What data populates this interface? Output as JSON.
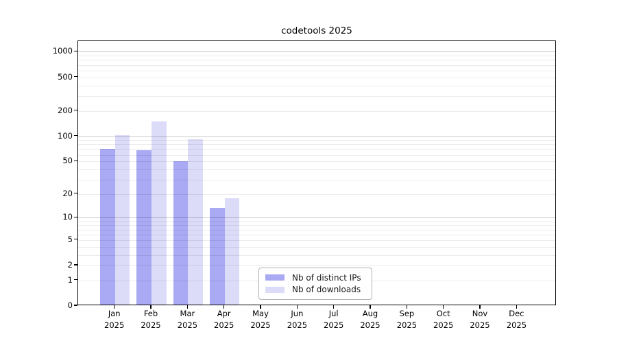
{
  "chart_data": {
    "type": "bar",
    "title": "codetools 2025",
    "categories": [
      "Jan 2025",
      "Feb 2025",
      "Mar 2025",
      "Apr 2025",
      "May 2025",
      "Jun 2025",
      "Jul 2025",
      "Aug 2025",
      "Sep 2025",
      "Oct 2025",
      "Nov 2025",
      "Dec 2025"
    ],
    "series": [
      {
        "name": "Nb of distinct IPs",
        "color": "#a9a9f4",
        "values": [
          68,
          66,
          48,
          13,
          0,
          0,
          0,
          0,
          0,
          0,
          0,
          0
        ]
      },
      {
        "name": "Nb of downloads",
        "color": "#dcdcf9",
        "values": [
          100,
          145,
          88,
          17,
          0,
          0,
          0,
          0,
          0,
          0,
          0,
          0
        ]
      }
    ],
    "xlabel": "",
    "ylabel": "",
    "ytick_values": [
      1000,
      500,
      200,
      100,
      50,
      20,
      10,
      5,
      2,
      1,
      0
    ],
    "grid_major_values": [
      10,
      100,
      1000
    ],
    "grid_minor_values": [
      1,
      2,
      3,
      4,
      5,
      6,
      7,
      8,
      9,
      20,
      30,
      40,
      50,
      60,
      70,
      80,
      90,
      200,
      300,
      400,
      500,
      600,
      700,
      800,
      900
    ],
    "scale": "log-like: position proportional to log10(value+1)",
    "ylim": [
      0,
      1400
    ],
    "grid": "horizontal",
    "legend_position": "lower center",
    "colors": {
      "grid_minor": "#ececec",
      "grid_major": "#c8c8c8",
      "axis": "#000000",
      "background": "#ffffff",
      "text": "#000000"
    }
  }
}
